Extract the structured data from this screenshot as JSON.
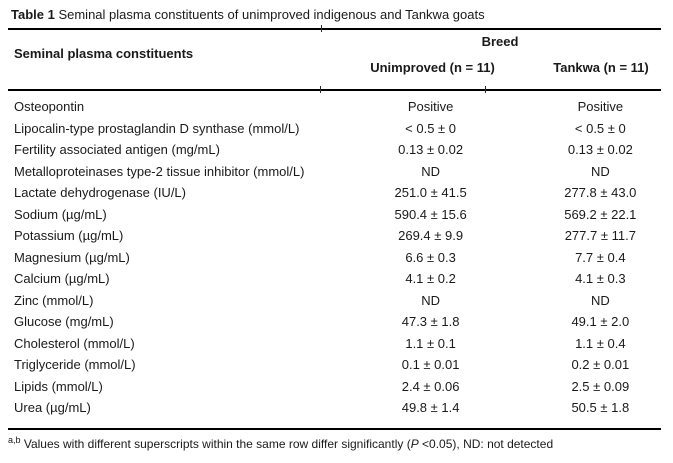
{
  "title": {
    "label": "Table 1",
    "caption": " Seminal plasma constituents of unimproved indigenous and Tankwa goats"
  },
  "header": {
    "constituents": "Seminal plasma constituents",
    "group": "Breed",
    "unimproved": "Unimproved (n = 11)",
    "tankwa": "Tankwa (n = 11)"
  },
  "rows": [
    {
      "constituent": "Osteopontin",
      "unimproved": "Positive",
      "tankwa": "Positive"
    },
    {
      "constituent": "Lipocalin-type prostaglandin D synthase (mmol/L)",
      "unimproved": "< 0.5 ± 0",
      "tankwa": "< 0.5 ± 0"
    },
    {
      "constituent": "Fertility associated antigen (mg/mL)",
      "unimproved": "0.13 ± 0.02",
      "tankwa": "0.13 ± 0.02"
    },
    {
      "constituent": "Metalloproteinases type-2 tissue inhibitor (mmol/L)",
      "unimproved": "ND",
      "tankwa": "ND"
    },
    {
      "constituent": "Lactate dehydrogenase (IU/L)",
      "unimproved": "251.0 ± 41.5",
      "tankwa": "277.8 ± 43.0"
    },
    {
      "constituent": "Sodium (µg/mL)",
      "unimproved": "590.4 ± 15.6",
      "tankwa": "569.2 ± 22.1"
    },
    {
      "constituent": "Potassium (µg/mL)",
      "unimproved": "269.4 ± 9.9",
      "tankwa": "277.7 ± 11.7"
    },
    {
      "constituent": "Magnesium (µg/mL)",
      "unimproved": "6.6 ± 0.3",
      "tankwa": "7.7 ± 0.4"
    },
    {
      "constituent": "Calcium (µg/mL)",
      "unimproved": "4.1 ± 0.2",
      "tankwa": "4.1 ± 0.3"
    },
    {
      "constituent": "Zinc (mmol/L)",
      "unimproved": "ND",
      "tankwa": "ND"
    },
    {
      "constituent": "Glucose (mg/mL)",
      "unimproved": "47.3 ± 1.8",
      "tankwa": "49.1 ± 2.0"
    },
    {
      "constituent": "Cholesterol (mmol/L)",
      "unimproved": "1.1 ± 0.1",
      "tankwa": "1.1 ± 0.4"
    },
    {
      "constituent": "Triglyceride (mmol/L)",
      "unimproved": "0.1 ± 0.01",
      "tankwa": "0.2 ± 0.01"
    },
    {
      "constituent": "Lipids (mmol/L)",
      "unimproved": "2.4 ± 0.06",
      "tankwa": "2.5 ± 0.09"
    },
    {
      "constituent": "Urea (µg/mL)",
      "unimproved": "49.8 ± 1.4",
      "tankwa": "50.5 ± 1.8"
    }
  ],
  "footnote": {
    "superscript": "a,b",
    "before_p": " Values with different superscripts within the same row differ significantly (",
    "p": "P",
    "after_p": " <0.05), ND: not detected"
  },
  "colors": {
    "text": "#1a1a1a",
    "rule": "#000000",
    "background": "#ffffff"
  }
}
